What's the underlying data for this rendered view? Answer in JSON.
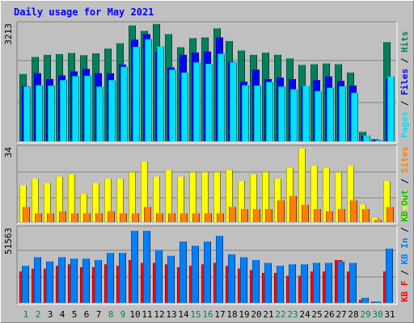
{
  "chart_data": {
    "type": "bar",
    "title": "Daily usage for May 2021",
    "categories": [
      "1",
      "2",
      "3",
      "4",
      "5",
      "6",
      "7",
      "8",
      "9",
      "10",
      "11",
      "12",
      "13",
      "14",
      "15",
      "16",
      "17",
      "18",
      "19",
      "20",
      "21",
      "22",
      "23",
      "24",
      "25",
      "26",
      "27",
      "28",
      "29",
      "30",
      "31"
    ],
    "weekend_days": [
      1,
      2,
      8,
      9,
      15,
      16,
      22,
      23,
      29,
      30
    ],
    "colors": {
      "hits": "#00805c",
      "files": "#0000ff",
      "pages": "#00e0ff",
      "visits": "#ffff00",
      "sites": "#ff8000",
      "kb_in": "#0080ff",
      "kb_out": "#00c000",
      "kb_f": "#ff0000",
      "title": "#0000ff",
      "weekday_label": "#000000",
      "weekend_label": "#00805c"
    },
    "panels": [
      {
        "id": "hits-files-pages",
        "max_label": "3213",
        "scale_max": 3213,
        "legend": [
          {
            "text": "Pages",
            "color": "#00e0ff"
          },
          {
            "text": "/",
            "color": "#000000"
          },
          {
            "text": "Files",
            "color": "#0000ff"
          },
          {
            "text": "/",
            "color": "#000000"
          },
          {
            "text": "Hits",
            "color": "#00805c"
          }
        ],
        "series": [
          {
            "name": "Hits",
            "color": "#00805c",
            "values": [
              1860,
              2330,
              2390,
              2410,
              2440,
              2380,
              2430,
              2560,
              2710,
              3200,
              3050,
              3240,
              2960,
              2600,
              2850,
              2870,
              3120,
              2770,
              2510,
              2390,
              2450,
              2390,
              2290,
              2110,
              2130,
              2150,
              2130,
              1900,
              260,
              60,
              2740
            ]
          },
          {
            "name": "Files",
            "color": "#0000ff",
            "values": [
              1520,
              1880,
              1720,
              1820,
              1930,
              2000,
              1880,
              1880,
              2120,
              2810,
              2960,
              2480,
              2040,
              2390,
              2450,
              2480,
              2870,
              2190,
              1650,
              1980,
              1720,
              1760,
              1720,
              1500,
              1690,
              1790,
              1670,
              1540,
              150,
              40,
              1730
            ]
          },
          {
            "name": "Pages",
            "color": "#00e0ff",
            "values": [
              1510,
              1550,
              1540,
              1690,
              1800,
              1810,
              1510,
              1690,
              2060,
              2610,
              2820,
              2620,
              1980,
              1900,
              2180,
              2140,
              2420,
              2180,
              1550,
              1540,
              1640,
              1510,
              1440,
              1530,
              1390,
              1480,
              1520,
              1340,
              160,
              30,
              1790
            ]
          }
        ]
      },
      {
        "id": "visits-sites",
        "max_label": "34",
        "scale_max": 34,
        "legend": [
          {
            "text": "Visits",
            "color": "#ffff00"
          },
          {
            "text": "/",
            "color": "#000000"
          },
          {
            "text": "Sites",
            "color": "#ff8000"
          }
        ],
        "series": [
          {
            "name": "Visits",
            "color": "#ffff00",
            "values": [
              17,
              20,
              18,
              21,
              22,
              13,
              18,
              20,
              20,
              23,
              28,
              21,
              24,
              21,
              23,
              23,
              23,
              24,
              19,
              22,
              23,
              20,
              25,
              34,
              26,
              25,
              23,
              26,
              8,
              2,
              19
            ]
          },
          {
            "name": "Sites",
            "color": "#ff8000",
            "values": [
              7,
              4,
              4,
              5,
              4,
              4,
              4,
              5,
              4,
              4,
              7,
              4,
              4,
              4,
              4,
              4,
              4,
              7,
              6,
              6,
              6,
              10,
              12,
              8,
              6,
              5,
              6,
              10,
              6,
              1,
              7
            ]
          }
        ]
      },
      {
        "id": "kbytes",
        "max_label": "51563",
        "scale_max": 51563,
        "legend": [
          {
            "text": "KB F",
            "color": "#ff0000"
          },
          {
            "text": "/",
            "color": "#000000"
          },
          {
            "text": "KB In",
            "color": "#0080ff"
          },
          {
            "text": "/",
            "color": "#000000"
          },
          {
            "text": "KB Out",
            "color": "#00c000"
          }
        ],
        "series": [
          {
            "name": "KB F",
            "color": "#ff0000",
            "values": [
              22000,
              24000,
              24000,
              26000,
              27000,
              25000,
              25000,
              27000,
              26000,
              30000,
              28000,
              28000,
              27000,
              25000,
              26000,
              27000,
              28000,
              26000,
              24000,
              23000,
              21000,
              21000,
              19000,
              19000,
              22000,
              22000,
              30000,
              22000,
              2000,
              800,
              22000
            ]
          },
          {
            "name": "KB In",
            "color": "#0080ff",
            "values": [
              26000,
              32000,
              29000,
              32000,
              31000,
              31000,
              30000,
              35000,
              35000,
              50500,
              50500,
              37000,
              33000,
              43000,
              40000,
              43000,
              47000,
              34000,
              32000,
              30000,
              28000,
              26000,
              27000,
              27000,
              28000,
              28000,
              29000,
              28000,
              3500,
              900,
              38000
            ]
          }
        ]
      }
    ]
  }
}
